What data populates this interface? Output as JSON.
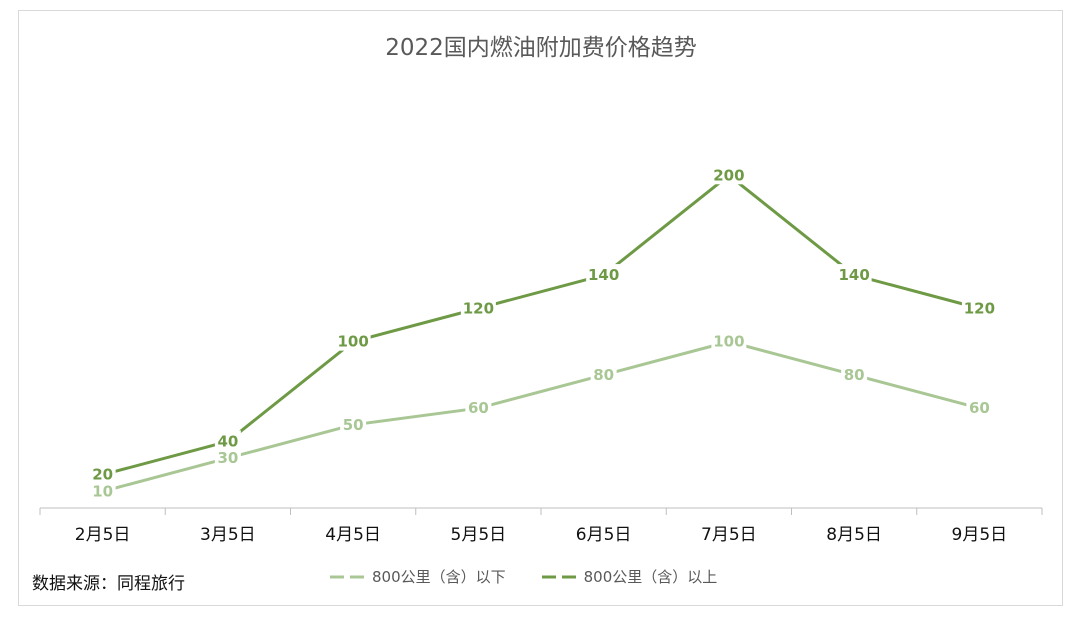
{
  "chart_data": {
    "type": "line",
    "title": "2022国内燃油附加费价格趋势",
    "categories": [
      "2月5日",
      "3月5日",
      "4月5日",
      "5月5日",
      "6月5日",
      "7月5日",
      "8月5日",
      "9月5日"
    ],
    "ylim": [
      0,
      220
    ],
    "grid": false,
    "legend": "bottom",
    "series": [
      {
        "name": "800公里（含）以下",
        "values": [
          10,
          30,
          50,
          60,
          80,
          100,
          80,
          60
        ],
        "color": "#a9c795"
      },
      {
        "name": "800公里（含）以上",
        "values": [
          20,
          40,
          100,
          120,
          140,
          200,
          140,
          120
        ],
        "color": "#6e9a46"
      }
    ]
  },
  "source_note": "数据来源：同程旅行"
}
